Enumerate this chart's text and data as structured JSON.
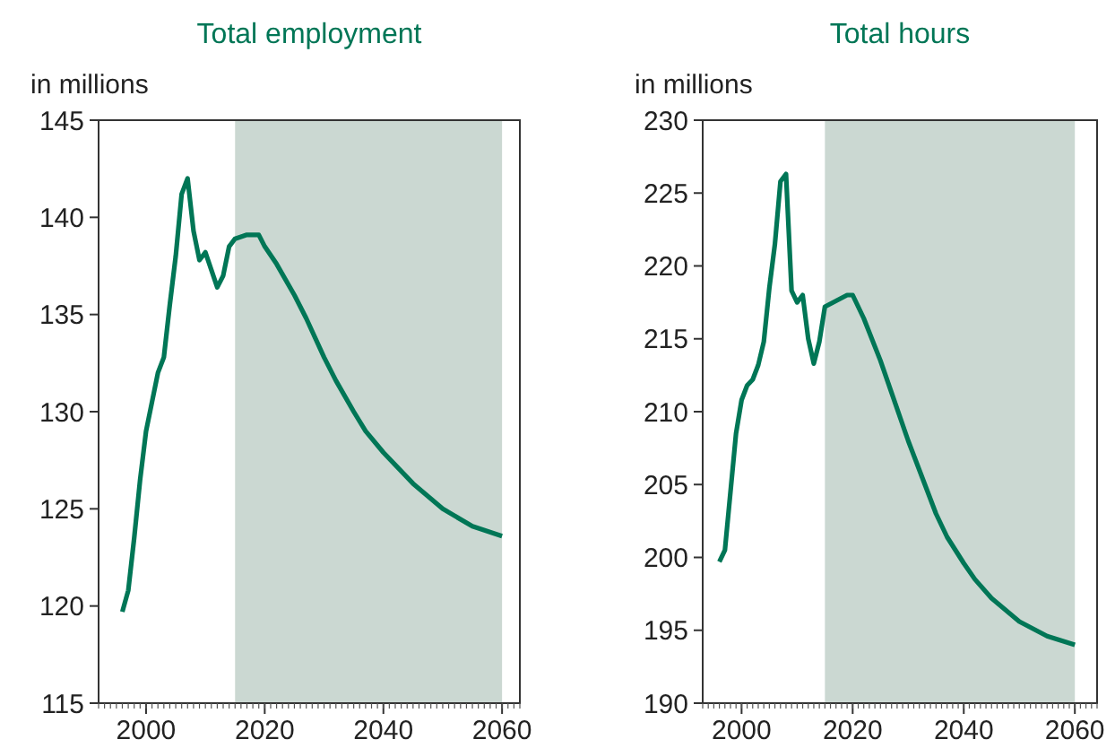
{
  "chart_data": [
    {
      "type": "line",
      "title": "Total employment",
      "ylabel": "in millions",
      "xlim": [
        1992,
        2063
      ],
      "xticks": [
        2000,
        2020,
        2040,
        2060
      ],
      "ylim": [
        115,
        145
      ],
      "yticks": [
        115,
        120,
        125,
        130,
        135,
        140,
        145
      ],
      "grid": false,
      "x": [
        1996,
        1997,
        1998,
        1999,
        2000,
        2001,
        2002,
        2003,
        2004,
        2005,
        2006,
        2007,
        2008,
        2009,
        2010,
        2011,
        2012,
        2013,
        2014,
        2015,
        2017,
        2019,
        2020,
        2022,
        2025,
        2027,
        2030,
        2032,
        2035,
        2037,
        2040,
        2045,
        2050,
        2055,
        2060
      ],
      "series": [
        {
          "color": "#007656",
          "values": [
            119.7,
            120.8,
            123.5,
            126.5,
            129,
            130.5,
            132,
            132.8,
            135.5,
            138,
            141.2,
            142,
            139.3,
            137.8,
            138.2,
            137.3,
            136.4,
            137,
            138.5,
            138.9,
            139.1,
            139.1,
            138.5,
            137.6,
            136.0,
            134.8,
            132.8,
            131.6,
            130.0,
            129.0,
            127.9,
            126.3,
            125.0,
            124.1,
            123.6
          ]
        }
      ],
      "bands": [
        {
          "axis": "x",
          "from": 2015,
          "to": 2060,
          "color": "#cbd8d2"
        }
      ]
    },
    {
      "type": "line",
      "title": "Total hours",
      "ylabel": "in millions",
      "xlim": [
        1993,
        2064
      ],
      "xticks": [
        2000,
        2020,
        2040,
        2060
      ],
      "ylim": [
        190,
        230
      ],
      "yticks": [
        190,
        195,
        200,
        205,
        210,
        215,
        220,
        225,
        230
      ],
      "grid": false,
      "x": [
        1996,
        1997,
        1998,
        1999,
        2000,
        2001,
        2002,
        2003,
        2004,
        2005,
        2006,
        2007,
        2008,
        2009,
        2010,
        2011,
        2012,
        2013,
        2014,
        2015,
        2017,
        2019,
        2020,
        2022,
        2025,
        2027,
        2030,
        2032,
        2035,
        2037,
        2040,
        2042,
        2045,
        2050,
        2055,
        2060
      ],
      "series": [
        {
          "color": "#007656",
          "values": [
            199.7,
            200.5,
            204.5,
            208.5,
            210.8,
            211.8,
            212.2,
            213.2,
            214.8,
            218.5,
            221.5,
            225.8,
            226.3,
            218.3,
            217.5,
            218,
            215,
            213.3,
            214.8,
            217.2,
            217.6,
            218,
            218,
            216.4,
            213.5,
            211.3,
            208.0,
            206.0,
            203.0,
            201.4,
            199.6,
            198.5,
            197.2,
            195.6,
            194.6,
            194.0
          ]
        }
      ],
      "bands": [
        {
          "axis": "x",
          "from": 2015,
          "to": 2060,
          "color": "#cbd8d2"
        }
      ]
    }
  ]
}
